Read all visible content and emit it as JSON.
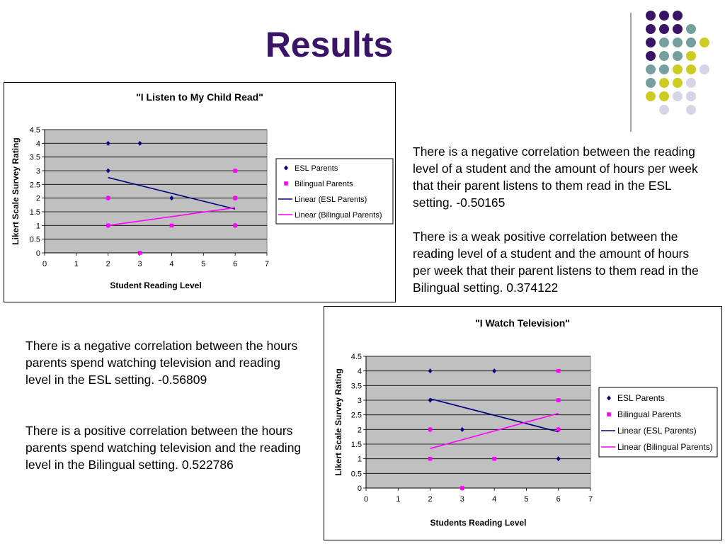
{
  "slide": {
    "title": "Results"
  },
  "notes": {
    "top_1": "There is a negative correlation between the reading level of a student and the amount of hours per week that their parent listens to them read in the ESL setting. -0.50165",
    "top_2": "There is a weak positive correlation between the reading level of a student and the amount of hours per week that their parent listens to them read in the Bilingual setting. 0.374122",
    "bottom_1": "There is a negative correlation between the hours parents spend watching television and reading level in the ESL setting. -0.56809",
    "bottom_2": "There is a positive correlation between the hours parents spend watching television and the reading level in the Bilingual setting. 0.522786"
  },
  "decor": {
    "dot_colors": {
      "purple": "#3a1567",
      "teal": "#76a0a0",
      "yellow": "#cccc22",
      "lavender": "#d5d5e8"
    }
  },
  "colors": {
    "esl": "#000080",
    "bilingual": "#ff00ff",
    "plot_bg": "#c0c0c0"
  },
  "chart_data": [
    {
      "type": "scatter",
      "title": "\"I Listen to My Child Read\"",
      "xlabel": "Student Reading Level",
      "ylabel": "Likert Scale Survey Rating",
      "xlim": [
        0,
        7
      ],
      "ylim": [
        0,
        4.5
      ],
      "x_ticks": [
        "0",
        "1",
        "2",
        "3",
        "4",
        "5",
        "6",
        "7"
      ],
      "y_ticks": [
        "0",
        "0.5",
        "1",
        "1.5",
        "2",
        "2.5",
        "3",
        "3.5",
        "4",
        "4.5"
      ],
      "grid": "horizontal",
      "legend_position": "right",
      "series": [
        {
          "name": "ESL Parents",
          "marker": "diamond",
          "color": "#000080",
          "points": [
            [
              2,
              4
            ],
            [
              3,
              4
            ],
            [
              2,
              3
            ],
            [
              2,
              2
            ],
            [
              4,
              2
            ],
            [
              6,
              2
            ],
            [
              2,
              1
            ],
            [
              6,
              1
            ]
          ]
        },
        {
          "name": "Bilingual Parents",
          "marker": "square",
          "color": "#ff00ff",
          "points": [
            [
              6,
              3
            ],
            [
              2,
              2
            ],
            [
              6,
              2
            ],
            [
              2,
              1
            ],
            [
              4,
              1
            ],
            [
              6,
              1
            ],
            [
              3,
              0
            ]
          ]
        }
      ],
      "trendlines": [
        {
          "name": "Linear (ESL Parents)",
          "color": "#000080",
          "from": [
            2,
            2.75
          ],
          "to": [
            6,
            1.6
          ]
        },
        {
          "name": "Linear (Bilingual Parents)",
          "color": "#ff00ff",
          "from": [
            2,
            1.0
          ],
          "to": [
            6,
            1.65
          ]
        }
      ]
    },
    {
      "type": "scatter",
      "title": "\"I Watch Television\"",
      "xlabel": "Students Reading Level",
      "ylabel": "Likert Scale Survey Rating",
      "xlim": [
        0,
        7
      ],
      "ylim": [
        0,
        4.5
      ],
      "x_ticks": [
        "0",
        "1",
        "2",
        "3",
        "4",
        "5",
        "6",
        "7"
      ],
      "y_ticks": [
        "0",
        "0.5",
        "1",
        "1.5",
        "2",
        "2.5",
        "3",
        "3.5",
        "4",
        "4.5"
      ],
      "grid": "horizontal",
      "legend_position": "right",
      "series": [
        {
          "name": "ESL Parents",
          "marker": "diamond",
          "color": "#000080",
          "points": [
            [
              2,
              4
            ],
            [
              4,
              4
            ],
            [
              2,
              3
            ],
            [
              3,
              2
            ],
            [
              6,
              2
            ],
            [
              2,
              2
            ],
            [
              6,
              1
            ]
          ]
        },
        {
          "name": "Bilingual Parents",
          "marker": "square",
          "color": "#ff00ff",
          "points": [
            [
              6,
              4
            ],
            [
              6,
              3
            ],
            [
              2,
              2
            ],
            [
              6,
              2
            ],
            [
              2,
              1
            ],
            [
              4,
              1
            ],
            [
              3,
              0
            ]
          ]
        }
      ],
      "trendlines": [
        {
          "name": "Linear (ESL Parents)",
          "color": "#000080",
          "from": [
            2,
            3.05
          ],
          "to": [
            6,
            1.92
          ]
        },
        {
          "name": "Linear (Bilingual Parents)",
          "color": "#ff00ff",
          "from": [
            2,
            1.35
          ],
          "to": [
            6,
            2.55
          ]
        }
      ]
    }
  ]
}
